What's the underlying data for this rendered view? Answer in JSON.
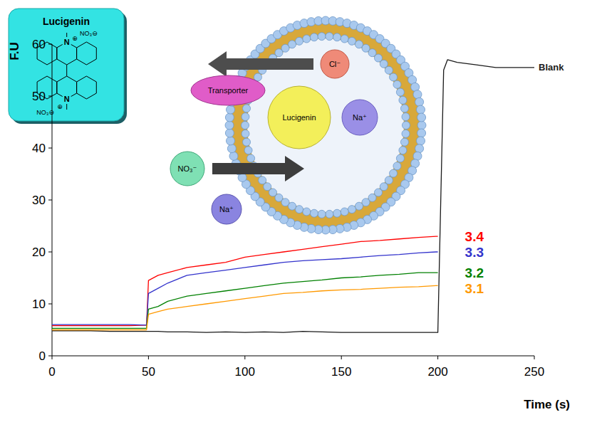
{
  "chart_data": {
    "type": "line",
    "x_label": "Time (s)",
    "y_label": "F.U",
    "x": [
      0,
      10,
      20,
      30,
      40,
      49,
      50,
      55,
      60,
      70,
      80,
      90,
      100,
      110,
      120,
      130,
      140,
      150,
      160,
      170,
      180,
      190,
      199,
      200,
      203,
      205,
      210,
      220,
      230,
      240,
      250
    ],
    "xlim": [
      0,
      250
    ],
    "xticks": [
      0,
      50,
      100,
      150,
      200,
      250
    ],
    "ylim": [
      0,
      60
    ],
    "yticks": [
      0,
      10,
      20,
      30,
      40,
      50,
      60
    ],
    "series": [
      {
        "name": "Blank",
        "color": "#1a1a1a",
        "values": [
          4.8,
          4.8,
          4.8,
          4.7,
          4.7,
          4.7,
          4.7,
          4.7,
          4.6,
          4.6,
          4.5,
          4.6,
          4.5,
          4.6,
          4.5,
          4.7,
          4.6,
          4.5,
          4.5,
          4.5,
          4.5,
          4.5,
          4.5,
          4.5,
          55,
          57,
          56.5,
          56,
          55.5,
          55.5,
          55.5
        ]
      },
      {
        "name": "3.4",
        "color": "#ff0000",
        "values": [
          5.8,
          5.8,
          5.8,
          5.8,
          5.8,
          5.9,
          14.5,
          15.5,
          16,
          17,
          17.5,
          18,
          19,
          19.5,
          20,
          20.5,
          21,
          21.5,
          22,
          22.2,
          22.5,
          22.8,
          23,
          23,
          null,
          null,
          null,
          null,
          null,
          null,
          null
        ]
      },
      {
        "name": "3.3",
        "color": "#3333cc",
        "values": [
          6,
          6,
          6,
          6,
          6,
          5.9,
          12,
          13,
          14,
          15.5,
          16,
          16.5,
          17,
          17.5,
          18,
          18.3,
          18.5,
          18.7,
          19,
          19.3,
          19.5,
          19.8,
          20,
          20,
          null,
          null,
          null,
          null,
          null,
          null,
          null
        ]
      },
      {
        "name": "3.2",
        "color": "#008000",
        "values": [
          5.3,
          5.3,
          5.3,
          5.3,
          5.3,
          5.3,
          9,
          9.5,
          10.5,
          11.5,
          12,
          12.5,
          13,
          13.5,
          14,
          14.3,
          14.6,
          15,
          15.2,
          15.5,
          15.7,
          16,
          16,
          16,
          null,
          null,
          null,
          null,
          null,
          null,
          null
        ]
      },
      {
        "name": "3.1",
        "color": "#ff9900",
        "values": [
          5,
          5,
          5,
          5,
          5,
          5,
          8,
          8.5,
          9,
          9.5,
          10,
          10.5,
          11,
          11.5,
          12,
          12.2,
          12.5,
          12.7,
          12.8,
          13,
          13.2,
          13.3,
          13.5,
          13.5,
          null,
          null,
          null,
          null,
          null,
          null,
          null
        ]
      }
    ],
    "annotations": [
      "Lucigenin",
      "N",
      "⊕",
      "NO₃⊖",
      "N",
      "⊕",
      "NO₃⊖",
      "Cl⁻",
      "Transporter",
      "Lucigenin",
      "Na⁺",
      "NO₃⁻",
      "Na⁺"
    ]
  }
}
